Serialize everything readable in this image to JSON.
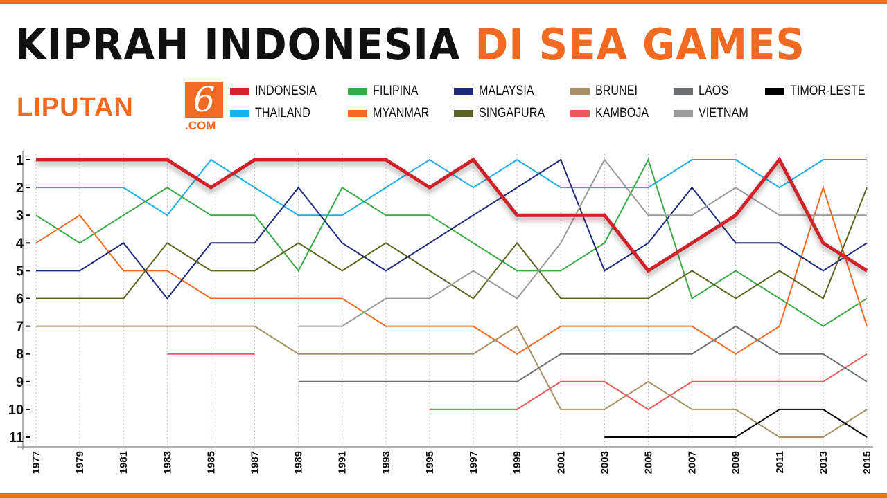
{
  "title": {
    "part1": "KIPRAH INDONESIA",
    "part2": "DI SEA GAMES"
  },
  "logo": {
    "text": "LIPUTAN",
    "mark": "6",
    "domain": ".COM"
  },
  "colors": {
    "accent": "#f26a22"
  },
  "chart_data": {
    "type": "line",
    "x": [
      "1977",
      "1979",
      "1981",
      "1983",
      "1985",
      "1987",
      "1989",
      "1991",
      "1993",
      "1995",
      "1997",
      "1999",
      "2001",
      "2003",
      "2005",
      "2007",
      "2009",
      "2011",
      "2013",
      "2015"
    ],
    "yticks": [
      "1",
      "2",
      "3",
      "4",
      "5",
      "6",
      "7",
      "8",
      "9",
      "10",
      "11"
    ],
    "ylim": [
      1,
      11
    ],
    "y_inverted": true,
    "grid": "vertical dotted",
    "legend": "top",
    "series": [
      {
        "name": "INDONESIA",
        "color": "#d1232a",
        "values": [
          1,
          1,
          1,
          1,
          2,
          1,
          1,
          1,
          1,
          2,
          1,
          3,
          3,
          3,
          5,
          4,
          3,
          1,
          4,
          5
        ]
      },
      {
        "name": "THAILAND",
        "color": "#1aafe6",
        "values": [
          2,
          2,
          2,
          3,
          1,
          2,
          3,
          3,
          2,
          1,
          2,
          1,
          2,
          2,
          2,
          1,
          1,
          2,
          1,
          1
        ]
      },
      {
        "name": "FILIPINA",
        "color": "#3aaa49",
        "values": [
          3,
          4,
          3,
          2,
          3,
          3,
          5,
          2,
          3,
          3,
          4,
          5,
          5,
          4,
          1,
          6,
          5,
          6,
          7,
          6
        ]
      },
      {
        "name": "MYANMAR",
        "color": "#f26a22",
        "values": [
          4,
          3,
          5,
          5,
          6,
          6,
          6,
          6,
          7,
          7,
          7,
          8,
          7,
          7,
          7,
          7,
          8,
          7,
          2,
          7
        ]
      },
      {
        "name": "MALAYSIA",
        "color": "#1c2a7a",
        "values": [
          5,
          5,
          4,
          6,
          4,
          4,
          2,
          4,
          5,
          4,
          3,
          2,
          1,
          5,
          4,
          2,
          4,
          4,
          5,
          4
        ]
      },
      {
        "name": "SINGAPURA",
        "color": "#5e6420",
        "values": [
          6,
          6,
          6,
          4,
          5,
          5,
          4,
          5,
          4,
          5,
          6,
          4,
          6,
          6,
          6,
          5,
          6,
          5,
          6,
          2
        ]
      },
      {
        "name": "BRUNEI",
        "color": "#a89064",
        "values": [
          7,
          7,
          7,
          7,
          7,
          7,
          8,
          8,
          8,
          8,
          8,
          7,
          10,
          10,
          9,
          10,
          10,
          11,
          11,
          10
        ]
      },
      {
        "name": "KAMBOJA",
        "color": "#e85858",
        "values": [
          null,
          null,
          null,
          8,
          8,
          8,
          null,
          null,
          null,
          10,
          10,
          10,
          9,
          9,
          10,
          9,
          9,
          9,
          9,
          8
        ]
      },
      {
        "name": "LAOS",
        "color": "#6d6e70",
        "values": [
          null,
          null,
          null,
          null,
          null,
          null,
          9,
          9,
          9,
          9,
          9,
          9,
          8,
          8,
          8,
          8,
          7,
          8,
          8,
          9
        ]
      },
      {
        "name": "VIETNAM",
        "color": "#9b9b9b",
        "values": [
          null,
          null,
          null,
          null,
          null,
          null,
          7,
          7,
          6,
          6,
          5,
          6,
          4,
          1,
          3,
          3,
          2,
          3,
          3,
          3
        ]
      },
      {
        "name": "TIMOR-LESTE",
        "color": "#000000",
        "values": [
          null,
          null,
          null,
          null,
          null,
          null,
          null,
          null,
          null,
          null,
          null,
          null,
          null,
          11,
          11,
          11,
          11,
          10,
          10,
          11
        ]
      }
    ]
  }
}
